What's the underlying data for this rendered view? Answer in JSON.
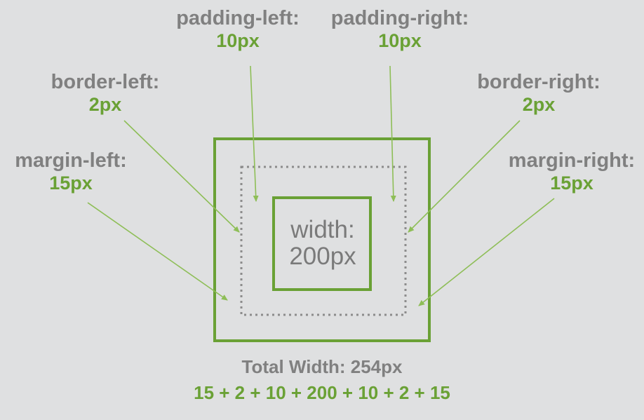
{
  "labels": {
    "padding_left": {
      "prop": "padding-left:",
      "value": "10px"
    },
    "padding_right": {
      "prop": "padding-right:",
      "value": "10px"
    },
    "border_left": {
      "prop": "border-left:",
      "value": "2px"
    },
    "border_right": {
      "prop": "border-right:",
      "value": "2px"
    },
    "margin_left": {
      "prop": "margin-left:",
      "value": "15px"
    },
    "margin_right": {
      "prop": "margin-right:",
      "value": "15px"
    }
  },
  "content_box": {
    "line1": "width:",
    "line2": "200px"
  },
  "total": {
    "title": "Total Width: 254px",
    "formula": "15 + 2 + 10 + 200 + 10 + 2 + 15"
  },
  "colors": {
    "background": "#dfe0e1",
    "accent_green": "#6aa135",
    "text_gray": "#808080",
    "arrow_green": "#8ebe57"
  }
}
